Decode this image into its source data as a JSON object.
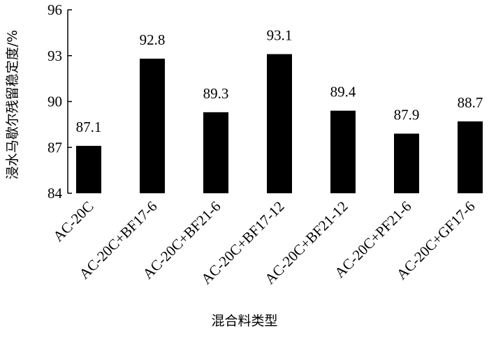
{
  "chart_data": {
    "type": "bar",
    "categories": [
      "AC-20C",
      "AC-20C+BF17-6",
      "AC-20C+BF21-6",
      "AC-20C+BF17-12",
      "AC-20C+BF21-12",
      "AC-20C+PF21-6",
      "AC-20C+GF17-6"
    ],
    "values": [
      87.1,
      92.8,
      89.3,
      93.1,
      89.4,
      87.9,
      88.7
    ],
    "color": "#000000",
    "x_label": "混合料类型",
    "y_label": "浸水马歇尔残留稳定度/%",
    "ylim": [
      84,
      96
    ],
    "yticks": [
      84,
      87,
      90,
      93,
      96
    ],
    "grid": false
  }
}
